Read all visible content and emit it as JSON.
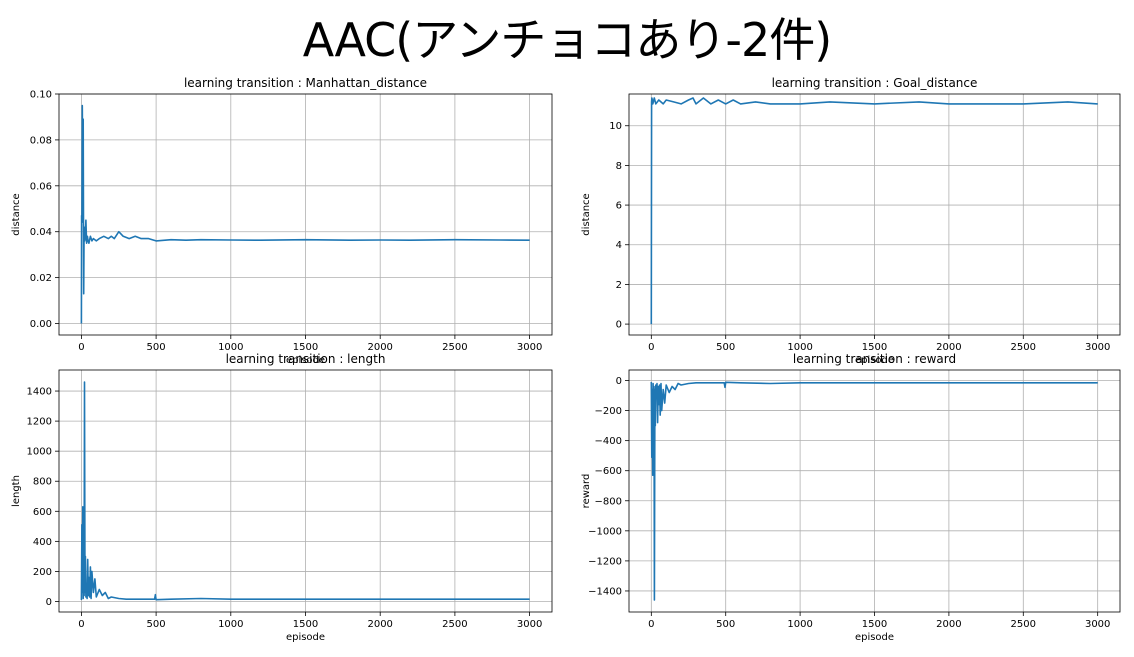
{
  "slide": {
    "title": "AAC(アンチョコあり-2件)"
  },
  "chart_data": [
    {
      "id": "manhattan",
      "type": "line",
      "title": "learning transition : Manhattan_distance",
      "xlabel": "episode",
      "ylabel": "distance",
      "xlim": [
        -150,
        3150
      ],
      "ylim": [
        -0.005,
        0.1
      ],
      "xticks": [
        0,
        500,
        1000,
        1500,
        2000,
        2500,
        3000
      ],
      "yticks": [
        0.0,
        0.02,
        0.04,
        0.06,
        0.08,
        0.1
      ],
      "ytick_labels": [
        "0.00",
        "0.02",
        "0.04",
        "0.06",
        "0.08",
        "0.10"
      ],
      "grid": true,
      "color": "#1f77b4",
      "series": [
        {
          "x": [
            0,
            1,
            3,
            6,
            9,
            12,
            15,
            18,
            22,
            26,
            30,
            35,
            40,
            45,
            50,
            60,
            70,
            80,
            100,
            120,
            150,
            180,
            200,
            220,
            250,
            280,
            320,
            360,
            400,
            450,
            500,
            600,
            700,
            800,
            1000,
            1200,
            1500,
            1800,
            2000,
            2200,
            2500,
            2800,
            3000
          ],
          "y": [
            0.0,
            0.047,
            0.044,
            0.095,
            0.062,
            0.089,
            0.013,
            0.042,
            0.036,
            0.038,
            0.045,
            0.035,
            0.038,
            0.036,
            0.035,
            0.038,
            0.036,
            0.037,
            0.036,
            0.037,
            0.038,
            0.037,
            0.038,
            0.037,
            0.04,
            0.038,
            0.037,
            0.038,
            0.037,
            0.037,
            0.036,
            0.0365,
            0.0363,
            0.0365,
            0.0364,
            0.0363,
            0.0365,
            0.0363,
            0.0364,
            0.0363,
            0.0365,
            0.0364,
            0.0363
          ]
        }
      ]
    },
    {
      "id": "goal",
      "type": "line",
      "title": "learning transition : Goal_distance",
      "xlabel": "episode",
      "ylabel": "distance",
      "xlim": [
        -150,
        3150
      ],
      "ylim": [
        -0.55,
        11.6
      ],
      "xticks": [
        0,
        500,
        1000,
        1500,
        2000,
        2500,
        3000
      ],
      "yticks": [
        0,
        2,
        4,
        6,
        8,
        10
      ],
      "ytick_labels": [
        "0",
        "2",
        "4",
        "6",
        "8",
        "10"
      ],
      "grid": true,
      "color": "#1f77b4",
      "series": [
        {
          "x": [
            0,
            2,
            4,
            10,
            20,
            30,
            50,
            80,
            100,
            150,
            200,
            250,
            280,
            300,
            350,
            400,
            450,
            500,
            550,
            600,
            700,
            800,
            1000,
            1200,
            1500,
            1800,
            2000,
            2200,
            2500,
            2800,
            3000
          ],
          "y": [
            0.0,
            11.2,
            11.4,
            11.1,
            11.4,
            11.1,
            11.3,
            11.1,
            11.3,
            11.2,
            11.1,
            11.3,
            11.4,
            11.1,
            11.4,
            11.1,
            11.3,
            11.1,
            11.3,
            11.1,
            11.2,
            11.1,
            11.1,
            11.2,
            11.1,
            11.2,
            11.1,
            11.1,
            11.1,
            11.2,
            11.1
          ]
        }
      ]
    },
    {
      "id": "length",
      "type": "line",
      "title": "learning transition : length",
      "xlabel": "episode",
      "ylabel": "length",
      "xlim": [
        -150,
        3150
      ],
      "ylim": [
        -70,
        1540
      ],
      "xticks": [
        0,
        500,
        1000,
        1500,
        2000,
        2500,
        3000
      ],
      "yticks": [
        0,
        200,
        400,
        600,
        800,
        1000,
        1200,
        1400
      ],
      "ytick_labels": [
        "0",
        "200",
        "400",
        "600",
        "800",
        "1000",
        "1200",
        "1400"
      ],
      "grid": true,
      "color": "#1f77b4",
      "series": [
        {
          "x": [
            0,
            3,
            6,
            9,
            12,
            15,
            18,
            21,
            24,
            27,
            30,
            34,
            38,
            42,
            46,
            50,
            55,
            60,
            65,
            70,
            80,
            90,
            100,
            120,
            140,
            160,
            180,
            200,
            250,
            300,
            400,
            490,
            495,
            500,
            600,
            800,
            1000,
            1500,
            2000,
            2500,
            3000
          ],
          "y": [
            10,
            510,
            60,
            630,
            20,
            560,
            40,
            1460,
            60,
            300,
            30,
            110,
            20,
            280,
            40,
            160,
            30,
            230,
            20,
            200,
            60,
            150,
            30,
            80,
            40,
            60,
            20,
            30,
            20,
            15,
            15,
            15,
            45,
            12,
            15,
            20,
            15,
            15,
            15,
            15,
            15
          ]
        }
      ]
    },
    {
      "id": "reward",
      "type": "line",
      "title": "learning transition : reward",
      "xlabel": "episode",
      "ylabel": "reward",
      "xlim": [
        -150,
        3150
      ],
      "ylim": [
        -1540,
        70
      ],
      "xticks": [
        0,
        500,
        1000,
        1500,
        2000,
        2500,
        3000
      ],
      "yticks": [
        0,
        -200,
        -400,
        -600,
        -800,
        -1000,
        -1200,
        -1400
      ],
      "ytick_labels": [
        "0",
        "−200",
        "−400",
        "−600",
        "−800",
        "−1000",
        "−1200",
        "−1400"
      ],
      "grid": true,
      "color": "#1f77b4",
      "series": [
        {
          "x": [
            0,
            3,
            6,
            9,
            12,
            15,
            18,
            21,
            24,
            27,
            30,
            34,
            38,
            42,
            46,
            50,
            55,
            60,
            65,
            70,
            80,
            90,
            100,
            120,
            140,
            160,
            180,
            200,
            250,
            300,
            400,
            490,
            495,
            500,
            600,
            800,
            1000,
            1500,
            2000,
            2500,
            3000
          ],
          "y": [
            -10,
            -510,
            -60,
            -630,
            -20,
            -560,
            -40,
            -1460,
            -60,
            -300,
            -30,
            -110,
            -20,
            -280,
            -40,
            -160,
            -30,
            -230,
            -20,
            -200,
            -60,
            -150,
            -30,
            -80,
            -40,
            -60,
            -20,
            -30,
            -20,
            -15,
            -15,
            -15,
            -45,
            -12,
            -15,
            -20,
            -15,
            -15,
            -15,
            -15,
            -15
          ]
        }
      ]
    }
  ]
}
